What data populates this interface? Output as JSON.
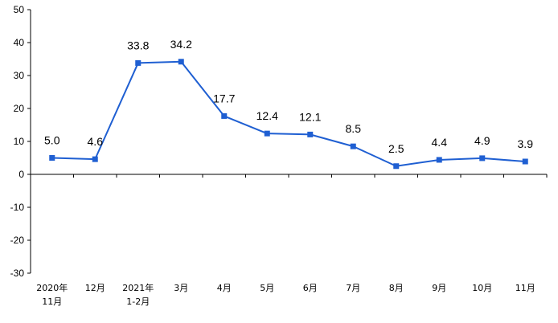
{
  "chart_data": {
    "type": "line",
    "title": "",
    "xlabel": "",
    "ylabel": "",
    "ylim": [
      -30,
      50
    ],
    "yticks": [
      50,
      40,
      30,
      20,
      10,
      0,
      -10,
      -20,
      -30
    ],
    "grid": false,
    "legend": "none",
    "color": "#1F5FD2",
    "categories": [
      [
        "2020年",
        "11月"
      ],
      [
        "12月"
      ],
      [
        "2021年",
        "1-2月"
      ],
      [
        "3月"
      ],
      [
        "4月"
      ],
      [
        "5月"
      ],
      [
        "6月"
      ],
      [
        "7月"
      ],
      [
        "8月"
      ],
      [
        "9月"
      ],
      [
        "10月"
      ],
      [
        "11月"
      ]
    ],
    "values": [
      5.0,
      4.6,
      33.8,
      34.2,
      17.7,
      12.4,
      12.1,
      8.5,
      2.5,
      4.4,
      4.9,
      3.9
    ],
    "data_labels": [
      "5.0",
      "4.6",
      "33.8",
      "34.2",
      "17.7",
      "12.4",
      "12.1",
      "8.5",
      "2.5",
      "4.4",
      "4.9",
      "3.9"
    ]
  }
}
